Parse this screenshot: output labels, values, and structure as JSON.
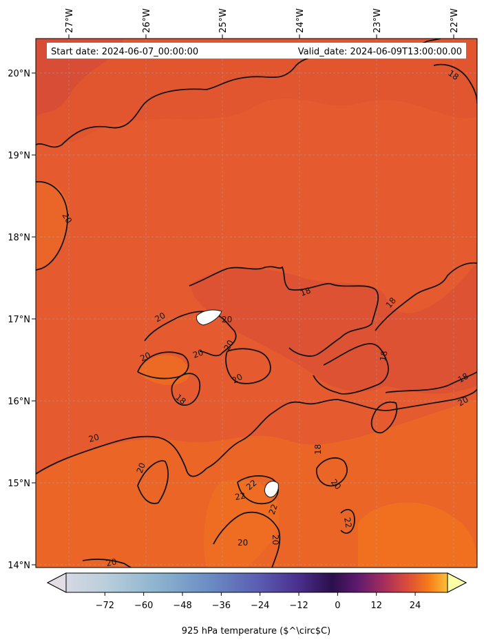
{
  "header": {
    "start_date": "Start date: 2024-06-07_00:00:00",
    "valid_date": "Valid_date: 2024-06-09T13:00:00.00"
  },
  "axes": {
    "lon_ticks": [
      "27°W",
      "26°W",
      "25°W",
      "24°W",
      "23°W",
      "22°W"
    ],
    "lat_ticks": [
      "20°N",
      "19°N",
      "18°N",
      "17°N",
      "16°N",
      "15°N",
      "14°N"
    ]
  },
  "contour_labels": [
    "18",
    "18",
    "18",
    "18",
    "18",
    "18",
    "18",
    "20",
    "20",
    "20",
    "20",
    "20",
    "20",
    "20",
    "20",
    "20",
    "20",
    "20",
    "20",
    "20",
    "20",
    "22",
    "22",
    "22",
    "22"
  ],
  "colorbar": {
    "label": "925 hPa temperature ($^\\circ$C)",
    "ticks": [
      "−72",
      "−60",
      "−48",
      "−36",
      "−24",
      "−12",
      "0",
      "12",
      "24"
    ],
    "tick_values": [
      -72,
      -60,
      -48,
      -36,
      -24,
      -12,
      0,
      12,
      24
    ],
    "range": [
      -84,
      34
    ]
  },
  "colors": {
    "field_warm": "#e4592f",
    "field_warmer": "#ea6428",
    "field_hottest": "#f07020",
    "field_cool": "#d84e37"
  }
}
